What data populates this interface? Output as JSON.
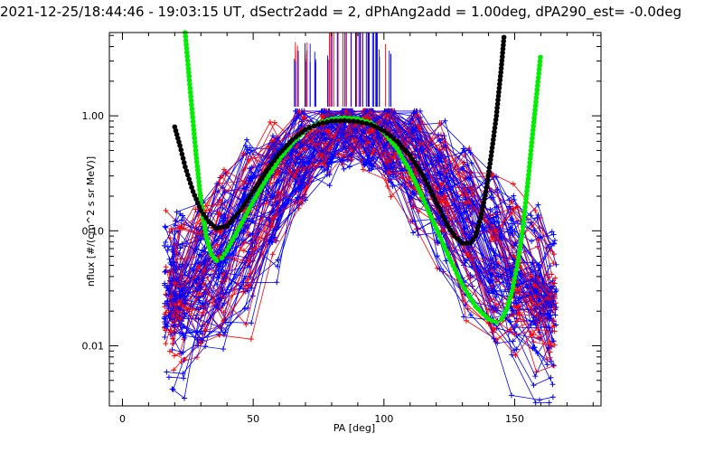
{
  "chart_data": {
    "type": "line",
    "title": "2021-12-25/18:44:46 - 19:03:15 UT, dSectr2add = 2, dPhAng2add = 1.00deg, dPA290_est= -0.0deg",
    "xlabel": "PA [deg]",
    "ylabel": "nflux [#/(cm^2 s sr MeV)]",
    "xlim": [
      -5,
      183
    ],
    "ylim": [
      0.003,
      5.3
    ],
    "yscale": "log",
    "grid": false,
    "x_ticks": [
      {
        "value": 0,
        "label": "0"
      },
      {
        "value": 50,
        "label": "50"
      },
      {
        "value": 100,
        "label": "100"
      },
      {
        "value": 150,
        "label": "150"
      }
    ],
    "y_ticks": [
      {
        "value": 0.01,
        "label": "0.01"
      },
      {
        "value": 0.1,
        "label": "0.10"
      },
      {
        "value": 1.0,
        "label": "1.00"
      }
    ],
    "colors": {
      "blue": "#0000ff",
      "red": "#ff0000",
      "green": "#00ee00",
      "black": "#000000"
    },
    "series": [
      {
        "color": "green",
        "style": "thick-dotted",
        "x": [
          24,
          26,
          28,
          30,
          32,
          34,
          36,
          38,
          40,
          45,
          50,
          55,
          60,
          65,
          70,
          75,
          80,
          85,
          90,
          95,
          100,
          105,
          110,
          115,
          120,
          125,
          130,
          135,
          140,
          143,
          145,
          147,
          149,
          151,
          153,
          155,
          157,
          160
        ],
        "y": [
          5.3,
          1.6,
          0.5,
          0.18,
          0.09,
          0.062,
          0.055,
          0.058,
          0.068,
          0.11,
          0.18,
          0.28,
          0.42,
          0.58,
          0.75,
          0.87,
          0.94,
          0.96,
          0.94,
          0.87,
          0.72,
          0.52,
          0.33,
          0.19,
          0.105,
          0.058,
          0.034,
          0.022,
          0.017,
          0.016,
          0.017,
          0.021,
          0.03,
          0.05,
          0.1,
          0.26,
          0.75,
          3.5
        ]
      },
      {
        "color": "black",
        "style": "thick-dotted",
        "x": [
          20,
          22,
          24,
          27,
          30,
          33,
          36,
          40,
          45,
          50,
          55,
          60,
          65,
          70,
          75,
          80,
          85,
          90,
          95,
          100,
          105,
          110,
          115,
          118,
          121,
          124,
          127,
          130,
          133,
          135,
          137,
          139,
          141,
          143,
          145,
          146
        ],
        "y": [
          0.8,
          0.55,
          0.36,
          0.22,
          0.15,
          0.12,
          0.105,
          0.11,
          0.15,
          0.22,
          0.33,
          0.47,
          0.62,
          0.76,
          0.85,
          0.9,
          0.91,
          0.89,
          0.84,
          0.74,
          0.6,
          0.45,
          0.3,
          0.22,
          0.16,
          0.115,
          0.09,
          0.078,
          0.078,
          0.09,
          0.13,
          0.22,
          0.45,
          1.0,
          2.8,
          5.2
        ]
      }
    ]
  }
}
